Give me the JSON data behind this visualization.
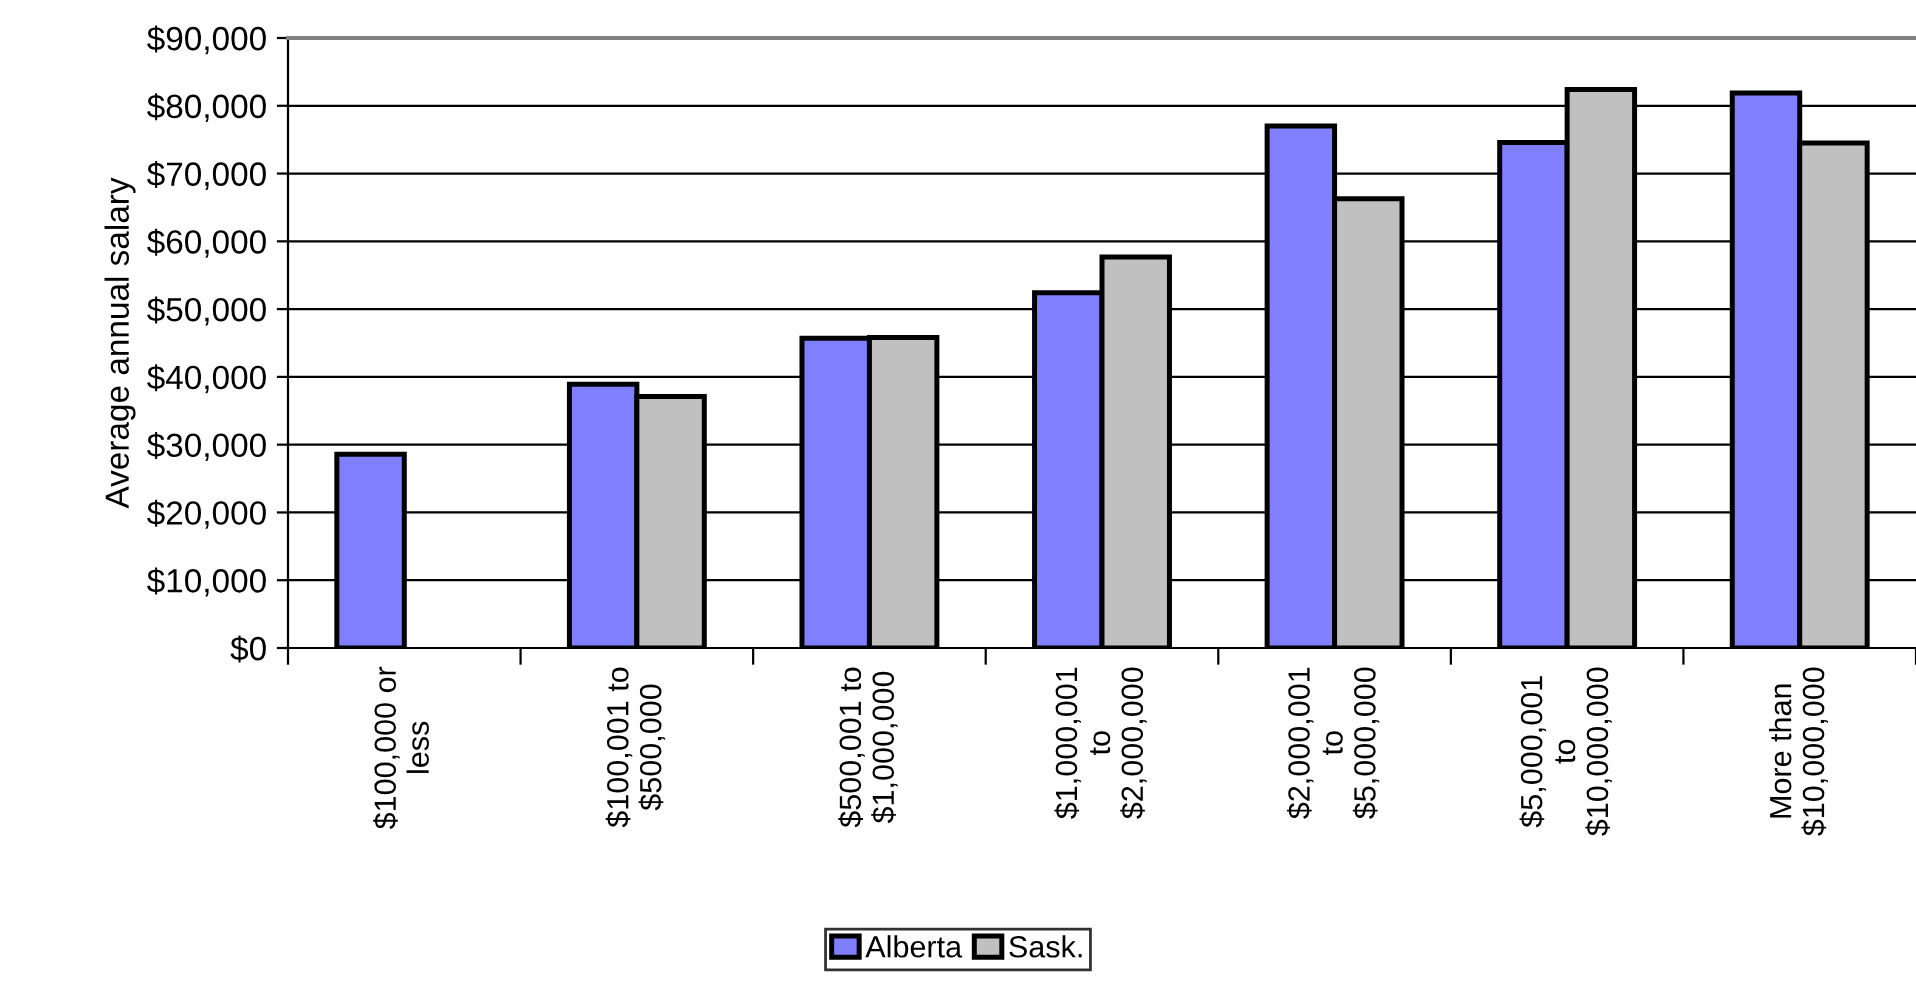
{
  "chart_data": {
    "type": "bar",
    "ylabel": "Average annual salary",
    "categories": [
      "$100,000 or\nless",
      "$100,001 to\n$500,000",
      "$500,001 to\n$1,000,000",
      "$1,000,001\nto\n$2,000,000",
      "$2,000,001\nto\n$5,000,000",
      "$5,000,001\nto\n$10,000,000",
      "More than\n$10,000,000"
    ],
    "series": [
      {
        "name": "Alberta",
        "color": "#8080ff",
        "values": [
          28600,
          38900,
          45700,
          52400,
          77000,
          74600,
          81900
        ]
      },
      {
        "name": "Sask.",
        "color": "#c0c0c0",
        "values": [
          null,
          37100,
          45800,
          57700,
          66300,
          82400,
          74500
        ]
      }
    ],
    "ylim": [
      0,
      90000
    ],
    "yticks": [
      {
        "value": 0,
        "label": "$0"
      },
      {
        "value": 10000,
        "label": "$10,000"
      },
      {
        "value": 20000,
        "label": "$20,000"
      },
      {
        "value": 30000,
        "label": "$30,000"
      },
      {
        "value": 40000,
        "label": "$40,000"
      },
      {
        "value": 50000,
        "label": "$50,000"
      },
      {
        "value": 60000,
        "label": "$60,000"
      },
      {
        "value": 70000,
        "label": "$70,000"
      },
      {
        "value": 80000,
        "label": "$80,000"
      },
      {
        "value": 90000,
        "label": "$90,000"
      }
    ],
    "grid": "y",
    "legend": "bottom"
  }
}
